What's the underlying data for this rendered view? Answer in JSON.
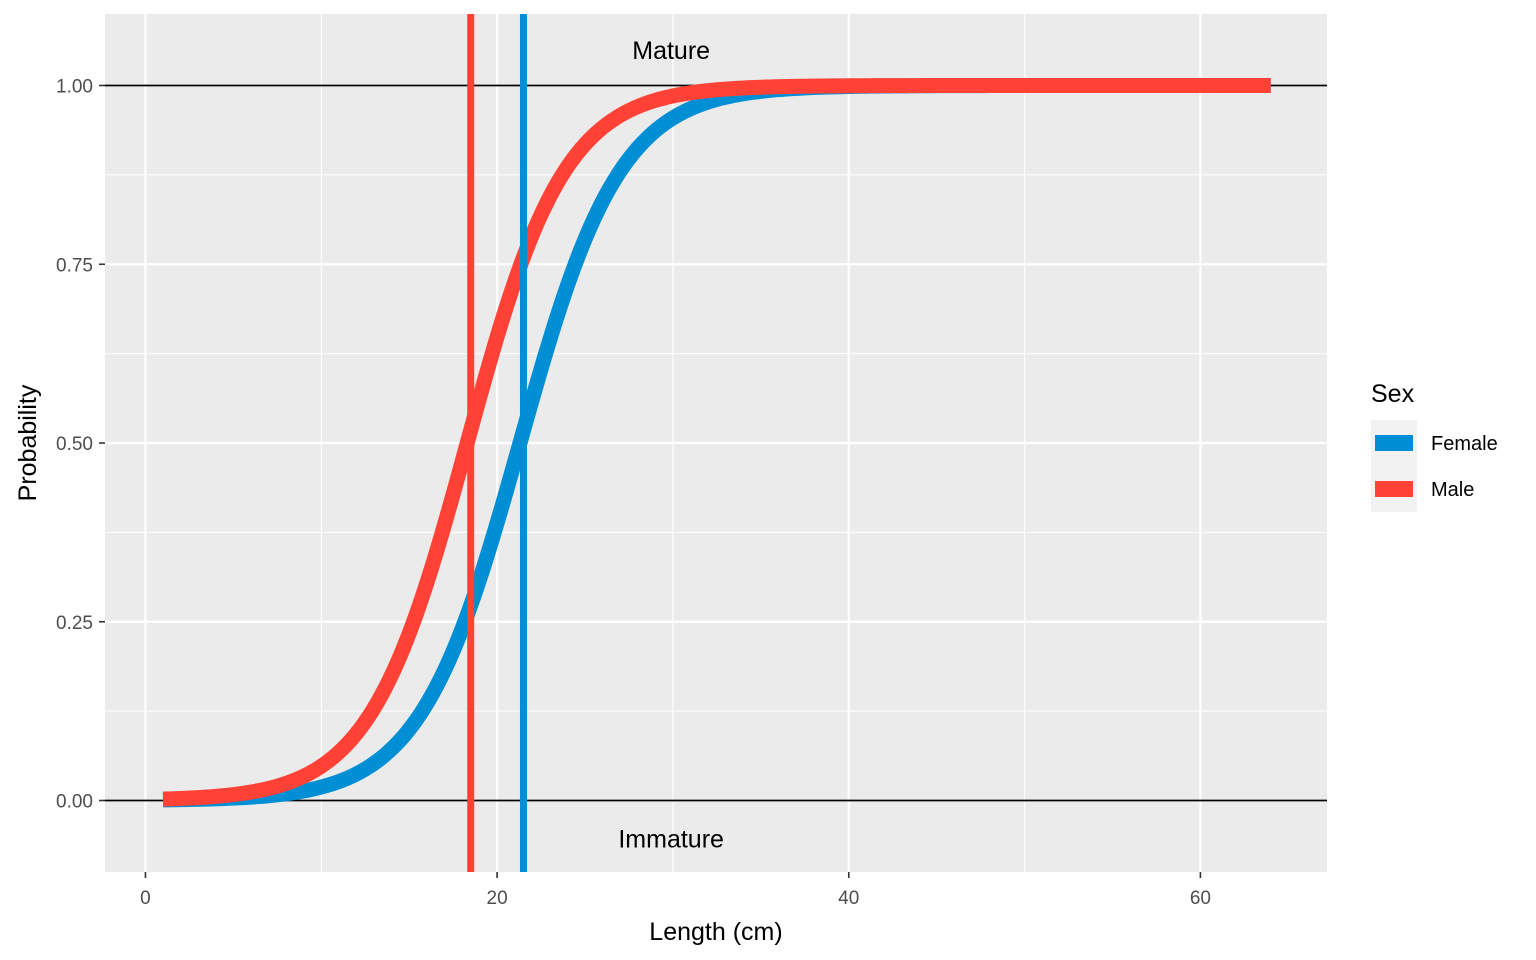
{
  "chart_data": {
    "type": "line",
    "xlabel": "Length (cm)",
    "ylabel": "Probability",
    "xlim": [
      -2.3,
      67.2
    ],
    "ylim": [
      -0.1,
      1.1
    ],
    "x_ticks": [
      0,
      20,
      40,
      60
    ],
    "x_tick_labels": [
      "0",
      "20",
      "40",
      "60"
    ],
    "y_ticks": [
      0,
      0.25,
      0.5,
      0.75,
      1.0
    ],
    "y_tick_labels": [
      "0.00",
      "0.25",
      "0.50",
      "0.75",
      "1.00"
    ],
    "grid": true,
    "legend": {
      "title": "Sex",
      "position": "right"
    },
    "series": [
      {
        "name": "Female",
        "color": "#008FD5",
        "x_start": 1,
        "x_end": 64,
        "l50": 21.3,
        "slope": 0.35
      },
      {
        "name": "Male",
        "color": "#FF4136",
        "x_start": 1,
        "x_end": 64,
        "l50": 18.3,
        "slope": 0.36
      }
    ],
    "vlines": [
      {
        "series": "Male",
        "x": 18.5,
        "color": "#FF4136"
      },
      {
        "series": "Female",
        "x": 21.5,
        "color": "#008FD5"
      }
    ],
    "hlines": [
      0,
      1
    ],
    "annotations": [
      {
        "text": "Mature",
        "x": 29.9,
        "y": 1.05
      },
      {
        "text": "Immature",
        "x": 29.9,
        "y": -0.053
      }
    ]
  }
}
